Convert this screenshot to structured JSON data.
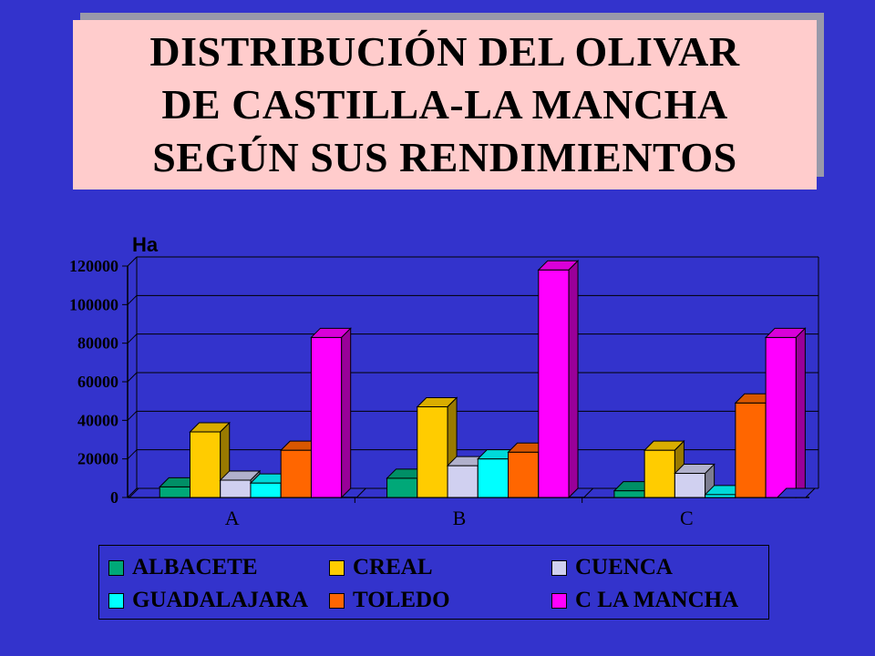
{
  "title": {
    "lines": [
      "DISTRIBUCIÓN DEL OLIVAR",
      "DE CASTILLA-LA MANCHA",
      "SEGÚN SUS RENDIMIENTOS"
    ]
  },
  "colors": {
    "background": "#3333cc",
    "title_box": "#ffcccc"
  },
  "chart_data": {
    "type": "bar",
    "style": "3d-clustered",
    "ylabel": "Ha",
    "ylim": [
      0,
      120000
    ],
    "yticks": [
      "0",
      "20000",
      "40000",
      "60000",
      "80000",
      "100000",
      "120000"
    ],
    "categories": [
      "A",
      "B",
      "C"
    ],
    "grid": true,
    "legend_position": "bottom",
    "series": [
      {
        "name": "ALBACETE",
        "color": "#00a878",
        "values": [
          5500,
          10000,
          3500
        ]
      },
      {
        "name": "CREAL",
        "color": "#ffcc00",
        "values": [
          34000,
          47000,
          24500
        ]
      },
      {
        "name": "CUENCA",
        "color": "#d0d0f0",
        "values": [
          9000,
          16500,
          12500
        ]
      },
      {
        "name": "GUADALAJARA",
        "color": "#00ffff",
        "values": [
          7500,
          20000,
          1500
        ]
      },
      {
        "name": "TOLEDO",
        "color": "#ff6600",
        "values": [
          24500,
          23500,
          49000
        ]
      },
      {
        "name": "C LA MANCHA",
        "color": "#ff00ff",
        "values": [
          83000,
          118000,
          83000
        ]
      }
    ]
  }
}
